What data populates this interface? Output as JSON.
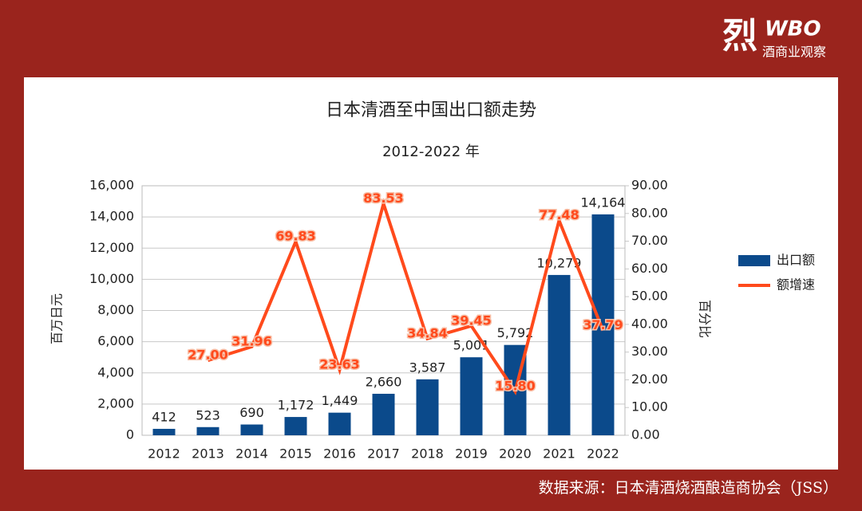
{
  "logo": {
    "mark": "烈",
    "brand": "WBO",
    "tagline": "酒商业观察"
  },
  "source": "数据来源：日本清酒烧酒酿造商协会（JSS）",
  "chart_data": {
    "type": "bar",
    "title": "日本清酒至中国出口额走势",
    "subtitle": "2012-2022 年",
    "y_label": "百万日元",
    "y2_label": "百分比",
    "categories": [
      "2012",
      "2013",
      "2014",
      "2015",
      "2016",
      "2017",
      "2018",
      "2019",
      "2020",
      "2021",
      "2022"
    ],
    "series": [
      {
        "name": "出口额",
        "type": "bar",
        "color": "#0b4a8b",
        "values": [
          412,
          523,
          690,
          1172,
          1449,
          2660,
          3587,
          5001,
          5792,
          10279,
          14164
        ],
        "value_labels": [
          "412",
          "523",
          "690",
          "1,172",
          "1,449",
          "2,660",
          "3,587",
          "5,001",
          "5,792",
          "10,279",
          "14,164"
        ]
      },
      {
        "name": "额增速",
        "type": "line",
        "axis": "y2",
        "color": "#ff4a1c",
        "values": [
          null,
          27.0,
          31.96,
          69.83,
          23.63,
          83.53,
          34.84,
          39.45,
          15.8,
          77.48,
          37.79
        ],
        "value_labels": [
          null,
          "27.00",
          "31.96",
          "69.83",
          "23.63",
          "83.53",
          "34.84",
          "39.45",
          "15.80",
          "77.48",
          "37.79"
        ]
      }
    ],
    "ylim": [
      0,
      16000
    ],
    "yticks": [
      0,
      {
        "value": 2000,
        "label": "2,000"
      },
      {
        "value": 4000,
        "label": "4,000"
      },
      {
        "value": 6000,
        "label": "6,000"
      },
      {
        "value": 8000,
        "label": "8,000"
      },
      {
        "value": 10000,
        "label": "10,000"
      },
      {
        "value": 12000,
        "label": "12,000"
      },
      {
        "value": 14000,
        "label": "14,000"
      },
      {
        "value": 16000,
        "label": "16,000"
      }
    ],
    "y2lim": [
      0,
      90
    ],
    "y2ticks": [
      {
        "value": 0,
        "label": "0.00"
      },
      {
        "value": 10,
        "label": "10.00"
      },
      {
        "value": 20,
        "label": "20.00"
      },
      {
        "value": 30,
        "label": "30.00"
      },
      {
        "value": 40,
        "label": "40.00"
      },
      {
        "value": 50,
        "label": "50.00"
      },
      {
        "value": 60,
        "label": "60.00"
      },
      {
        "value": 70,
        "label": "70.00"
      },
      {
        "value": 80,
        "label": "80.00"
      },
      {
        "value": 90,
        "label": "90.00"
      }
    ],
    "grid": true,
    "legend": "right"
  }
}
